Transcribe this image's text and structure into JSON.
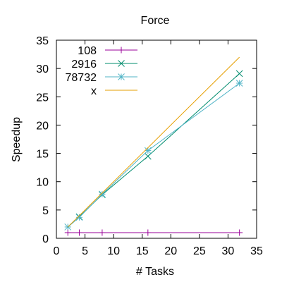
{
  "chart_data": {
    "type": "line",
    "title": "Force",
    "xlabel": "# Tasks",
    "ylabel": "Speedup",
    "xlim": [
      0,
      35
    ],
    "ylim": [
      0,
      35
    ],
    "xticks": [
      "0",
      "5",
      "10",
      "15",
      "20",
      "25",
      "30",
      "35"
    ],
    "yticks": [
      "0",
      "5",
      "10",
      "15",
      "20",
      "25",
      "30",
      "35"
    ],
    "grid": false,
    "legend_position": "top-left",
    "series": [
      {
        "name": "108",
        "color": "#990099",
        "marker": "plus",
        "x": [
          2,
          4,
          8,
          16,
          32
        ],
        "y": [
          1.0,
          1.0,
          1.0,
          1.0,
          1.0
        ]
      },
      {
        "name": "2916",
        "color": "#008c6e",
        "marker": "cross",
        "x": [
          4,
          8,
          16,
          32
        ],
        "y": [
          3.8,
          7.7,
          14.5,
          29.1
        ]
      },
      {
        "name": "78732",
        "color": "#4fb3c6",
        "marker": "star",
        "x": [
          2,
          4,
          8,
          16,
          32
        ],
        "y": [
          2.0,
          3.7,
          7.8,
          15.5,
          27.4
        ]
      },
      {
        "name": "x",
        "color": "#e69f00",
        "marker": "none",
        "x": [
          2,
          32
        ],
        "y": [
          2,
          32
        ]
      }
    ]
  }
}
